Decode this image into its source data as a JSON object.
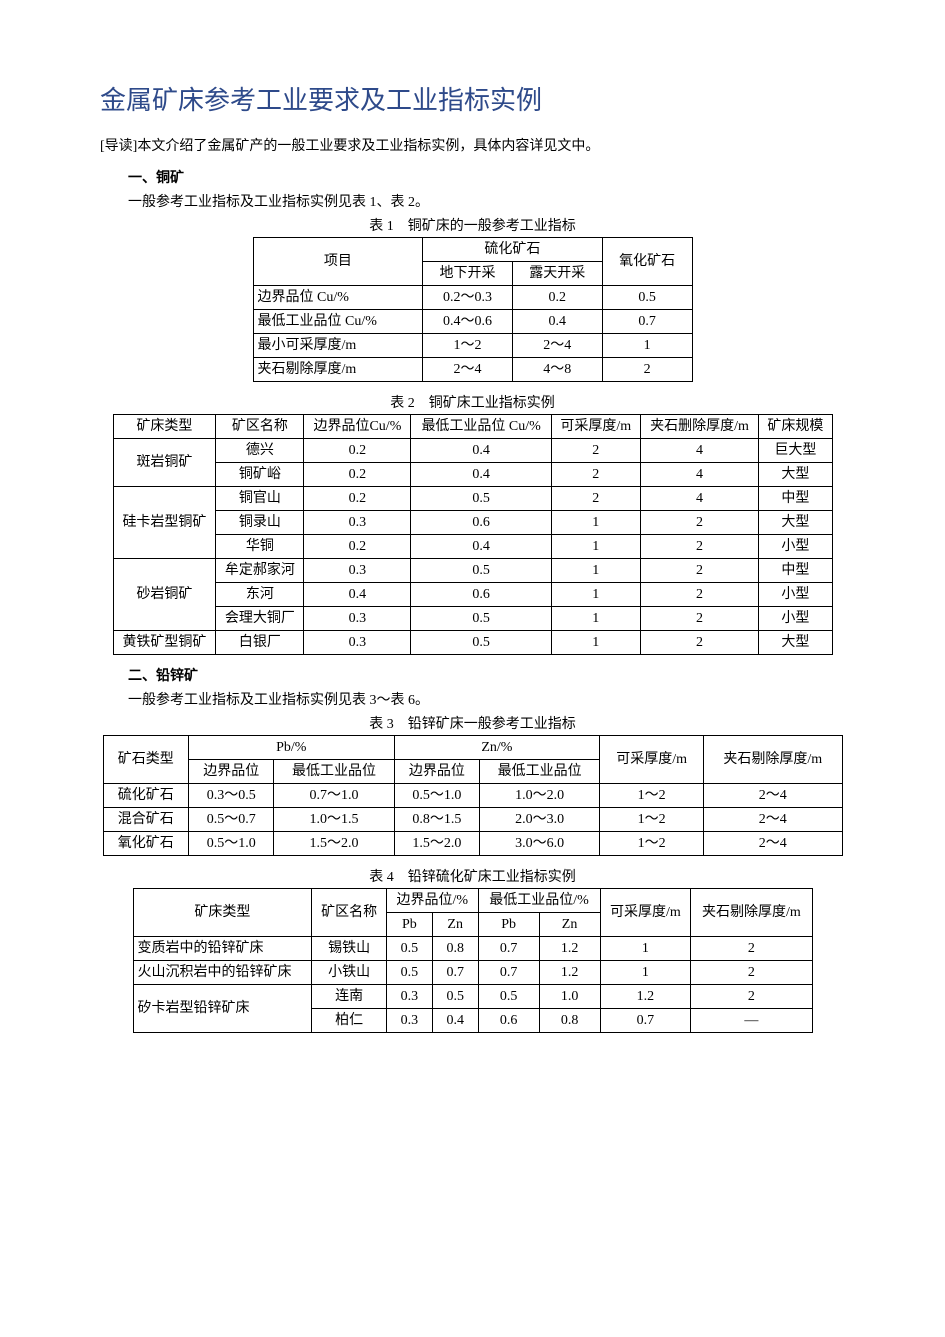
{
  "title": "金属矿床参考工业要求及工业指标实例",
  "intro": "[导读]本文介绍了金属矿产的一般工业要求及工业指标实例，具体内容详见文中。",
  "sec1": {
    "head": "一、铜矿",
    "sub": "一般参考工业指标及工业指标实例见表 1、表 2。"
  },
  "table1": {
    "caption": "表 1　铜矿床的一般参考工业指标",
    "h_item": "项目",
    "h_sulf": "硫化矿石",
    "h_oxid": "氧化矿石",
    "h_ug": "地下开采",
    "h_op": "露天开采",
    "rows": [
      {
        "item": "边界品位 Cu/%",
        "ug": "0.2～0.3",
        "op": "0.2",
        "ox": "0.5"
      },
      {
        "item": "最低工业品位 Cu/%",
        "ug": "0.4～0.6",
        "op": "0.4",
        "ox": "0.7"
      },
      {
        "item": "最小可采厚度/m",
        "ug": "1～2",
        "op": "2～4",
        "ox": "1"
      },
      {
        "item": "夹石剔除厚度/m",
        "ug": "2～4",
        "op": "4～8",
        "ox": "2"
      }
    ]
  },
  "table2": {
    "caption": "表 2　铜矿床工业指标实例",
    "h_type": "矿床类型",
    "h_area": "矿区名称",
    "h_cut": "边界品位Cu/%",
    "h_min": "最低工业品位 Cu/%",
    "h_thick": "可采厚度/m",
    "h_waste": "夹石删除厚度/m",
    "h_scale": "矿床规模",
    "groups": [
      {
        "type": "斑岩铜矿",
        "rows": [
          {
            "area": "德兴",
            "cut": "0.2",
            "min": "0.4",
            "thick": "2",
            "waste": "4",
            "scale": "巨大型"
          },
          {
            "area": "铜矿峪",
            "cut": "0.2",
            "min": "0.4",
            "thick": "2",
            "waste": "4",
            "scale": "大型"
          }
        ]
      },
      {
        "type": "硅卡岩型铜矿",
        "rows": [
          {
            "area": "铜官山",
            "cut": "0.2",
            "min": "0.5",
            "thick": "2",
            "waste": "4",
            "scale": "中型"
          },
          {
            "area": "铜录山",
            "cut": "0.3",
            "min": "0.6",
            "thick": "1",
            "waste": "2",
            "scale": "大型"
          },
          {
            "area": "华铜",
            "cut": "0.2",
            "min": "0.4",
            "thick": "1",
            "waste": "2",
            "scale": "小型"
          }
        ]
      },
      {
        "type": "砂岩铜矿",
        "rows": [
          {
            "area": "牟定郝家河",
            "cut": "0.3",
            "min": "0.5",
            "thick": "1",
            "waste": "2",
            "scale": "中型"
          },
          {
            "area": "东河",
            "cut": "0.4",
            "min": "0.6",
            "thick": "1",
            "waste": "2",
            "scale": "小型"
          },
          {
            "area": "会理大铜厂",
            "cut": "0.3",
            "min": "0.5",
            "thick": "1",
            "waste": "2",
            "scale": "小型"
          }
        ]
      },
      {
        "type": "黄铁矿型铜矿",
        "rows": [
          {
            "area": "白银厂",
            "cut": "0.3",
            "min": "0.5",
            "thick": "1",
            "waste": "2",
            "scale": "大型"
          }
        ]
      }
    ]
  },
  "sec2": {
    "head": "二、铅锌矿",
    "sub": "一般参考工业指标及工业指标实例见表 3～表 6。"
  },
  "table3": {
    "caption": "表 3　铅锌矿床一般参考工业指标",
    "h_type": "矿石类型",
    "h_pb": "Pb/%",
    "h_zn": "Zn/%",
    "h_thick": "可采厚度/m",
    "h_waste": "夹石剔除厚度/m",
    "h_cut": "边界品位",
    "h_min": "最低工业品位",
    "rows": [
      {
        "type": "硫化矿石",
        "pbc": "0.3～0.5",
        "pbm": "0.7～1.0",
        "znc": "0.5～1.0",
        "znm": "1.0～2.0",
        "thick": "1～2",
        "waste": "2～4"
      },
      {
        "type": "混合矿石",
        "pbc": "0.5～0.7",
        "pbm": "1.0～1.5",
        "znc": "0.8～1.5",
        "znm": "2.0～3.0",
        "thick": "1～2",
        "waste": "2～4"
      },
      {
        "type": "氧化矿石",
        "pbc": "0.5～1.0",
        "pbm": "1.5～2.0",
        "znc": "1.5～2.0",
        "znm": "3.0～6.0",
        "thick": "1～2",
        "waste": "2～4"
      }
    ]
  },
  "table4": {
    "caption": "表 4　铅锌硫化矿床工业指标实例",
    "h_type": "矿床类型",
    "h_area": "矿区名称",
    "h_cut": "边界品位/%",
    "h_min": "最低工业品位/%",
    "h_thick": "可采厚度/m",
    "h_waste": "夹石剔除厚度/m",
    "h_pb": "Pb",
    "h_zn": "Zn",
    "groups": [
      {
        "type": "变质岩中的铅锌矿床",
        "rows": [
          {
            "area": "锡铁山",
            "cpb": "0.5",
            "czn": "0.8",
            "mpb": "0.7",
            "mzn": "1.2",
            "thick": "1",
            "waste": "2"
          }
        ]
      },
      {
        "type": "火山沉积岩中的铅锌矿床",
        "rows": [
          {
            "area": "小铁山",
            "cpb": "0.5",
            "czn": "0.7",
            "mpb": "0.7",
            "mzn": "1.2",
            "thick": "1",
            "waste": "2"
          }
        ]
      },
      {
        "type": "矽卡岩型铅锌矿床",
        "rows": [
          {
            "area": "连南",
            "cpb": "0.3",
            "czn": "0.5",
            "mpb": "0.5",
            "mzn": "1.0",
            "thick": "1.2",
            "waste": "2"
          },
          {
            "area": "柏仁",
            "cpb": "0.3",
            "czn": "0.4",
            "mpb": "0.6",
            "mzn": "0.8",
            "thick": "0.7",
            "waste": "—"
          }
        ]
      }
    ]
  }
}
